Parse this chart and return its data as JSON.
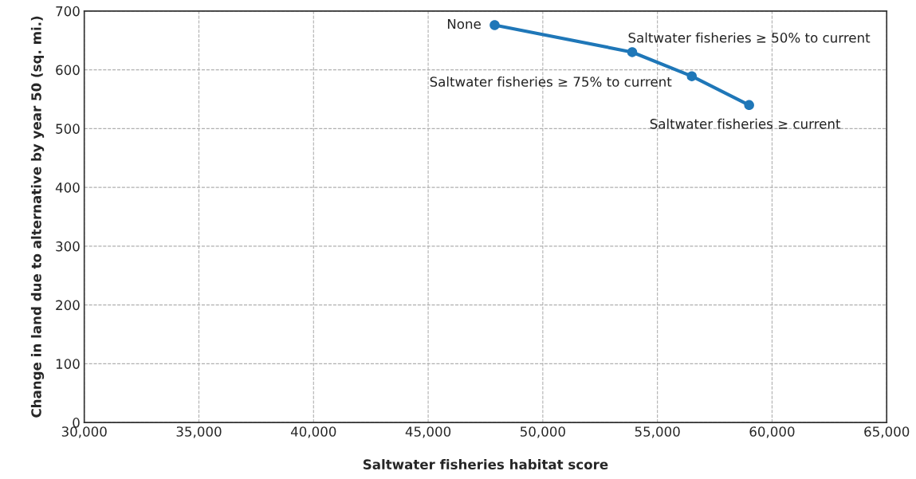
{
  "chart_data": {
    "type": "line",
    "xlabel": "Saltwater fisheries habitat score",
    "ylabel": "Change in land due to alternative by year 50 (sq. mi.)",
    "x": [
      47900,
      53900,
      56500,
      59000
    ],
    "series": [
      {
        "color": "#1f77b8",
        "values": [
          676,
          630,
          589,
          540
        ]
      }
    ],
    "xlim": [
      30000,
      65000
    ],
    "xticks": [
      {
        "value": 30000,
        "label": "30,000"
      },
      {
        "value": 35000,
        "label": "35,000"
      },
      {
        "value": 40000,
        "label": "40,000"
      },
      {
        "value": 45000,
        "label": "45,000"
      },
      {
        "value": 50000,
        "label": "50,000"
      },
      {
        "value": 55000,
        "label": "55,000"
      },
      {
        "value": 60000,
        "label": "60,000"
      },
      {
        "value": 65000,
        "label": "65,000"
      }
    ],
    "ylim": [
      0,
      700
    ],
    "yticks": [
      0,
      100,
      200,
      300,
      400,
      500,
      600,
      700
    ],
    "grid": true,
    "marker": "circle",
    "line_style": "solid",
    "annotations": [
      {
        "text": "None",
        "x": 47900,
        "y": 676
      },
      {
        "text": "Saltwater fisheries ≥ 50% to current",
        "x": 53900,
        "y": 630
      },
      {
        "text": "Saltwater fisheries ≥ 75% to current",
        "x": 56500,
        "y": 589
      },
      {
        "text": "Saltwater fisheries ≥ current",
        "x": 59000,
        "y": 540
      }
    ]
  }
}
